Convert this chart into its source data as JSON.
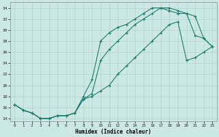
{
  "xlabel": "Humidex (Indice chaleur)",
  "background_color": "#cce8e2",
  "line_color": "#1a7a6e",
  "grid_color": "#aacfc8",
  "xlim": [
    -0.5,
    23.5
  ],
  "ylim": [
    13.5,
    35.0
  ],
  "yticks": [
    14,
    16,
    18,
    20,
    22,
    24,
    26,
    28,
    30,
    32,
    34
  ],
  "xticks": [
    0,
    1,
    2,
    3,
    4,
    5,
    6,
    7,
    8,
    9,
    10,
    11,
    12,
    13,
    14,
    15,
    16,
    17,
    18,
    19,
    20,
    21,
    22,
    23
  ],
  "curve1_x": [
    0,
    1,
    2,
    3,
    4,
    5,
    6,
    7,
    8,
    9,
    10,
    11,
    12,
    13,
    14,
    15,
    16,
    17,
    18,
    19,
    20,
    21,
    22,
    23
  ],
  "curve1_y": [
    16.5,
    15.5,
    15.0,
    14.0,
    14.0,
    14.5,
    14.5,
    15.0,
    18.0,
    21.0,
    28.0,
    29.5,
    30.5,
    31.0,
    32.0,
    33.0,
    34.0,
    34.0,
    34.0,
    33.5,
    33.0,
    32.5,
    28.5,
    27.0
  ],
  "curve2_x": [
    0,
    1,
    2,
    3,
    4,
    5,
    6,
    7,
    8,
    9,
    10,
    11,
    12,
    13,
    14,
    15,
    16,
    17,
    18,
    19,
    20,
    21,
    22,
    23
  ],
  "curve2_y": [
    16.5,
    15.5,
    15.0,
    14.0,
    14.0,
    14.5,
    14.5,
    15.0,
    17.5,
    18.5,
    24.5,
    26.5,
    28.0,
    29.5,
    31.0,
    32.0,
    33.0,
    34.0,
    33.5,
    33.0,
    33.0,
    29.0,
    28.5,
    27.0
  ],
  "curve3_x": [
    0,
    1,
    2,
    3,
    4,
    5,
    6,
    7,
    8,
    9,
    10,
    11,
    12,
    13,
    14,
    15,
    16,
    17,
    18,
    19,
    20,
    21,
    22,
    23
  ],
  "curve3_y": [
    16.5,
    15.5,
    15.0,
    14.0,
    14.0,
    14.5,
    14.5,
    15.0,
    17.5,
    18.0,
    19.0,
    20.0,
    22.0,
    23.5,
    25.0,
    26.5,
    28.0,
    29.5,
    31.0,
    31.5,
    24.5,
    25.0,
    26.0,
    27.0
  ]
}
